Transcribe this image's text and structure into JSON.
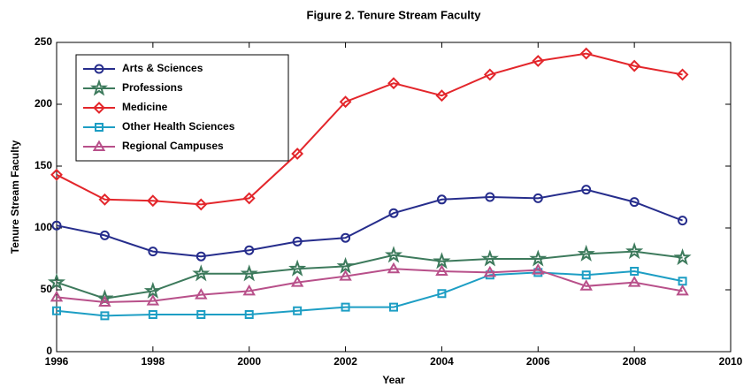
{
  "chart_data": {
    "type": "line",
    "title": "Figure 2. Tenure Stream Faculty",
    "xlabel": "Year",
    "ylabel": "Tenure Stream Faculty",
    "x": [
      1996,
      1997,
      1998,
      1999,
      2000,
      2001,
      2002,
      2003,
      2004,
      2005,
      2006,
      2007,
      2008,
      2009
    ],
    "series": [
      {
        "name": "Arts & Sciences",
        "color": "#262d8c",
        "marker": "circle",
        "values": [
          102,
          94,
          81,
          77,
          82,
          89,
          92,
          112,
          123,
          125,
          124,
          131,
          121,
          106
        ]
      },
      {
        "name": "Professions",
        "color": "#3d7a5c",
        "marker": "star",
        "values": [
          56,
          43,
          49,
          63,
          63,
          67,
          69,
          78,
          73,
          75,
          75,
          79,
          81,
          76
        ]
      },
      {
        "name": "Medicine",
        "color": "#e3262b",
        "marker": "diamond",
        "values": [
          143,
          123,
          122,
          119,
          124,
          160,
          202,
          217,
          207,
          224,
          235,
          241,
          231,
          224
        ]
      },
      {
        "name": "Other Health Sciences",
        "color": "#1d9ec4",
        "marker": "square",
        "values": [
          33,
          29,
          30,
          30,
          30,
          33,
          36,
          36,
          47,
          62,
          64,
          62,
          65,
          57
        ]
      },
      {
        "name": "Regional Campuses",
        "color": "#b8508a",
        "marker": "triangle",
        "values": [
          44,
          40,
          41,
          46,
          49,
          56,
          61,
          67,
          65,
          64,
          66,
          53,
          56,
          49
        ]
      }
    ],
    "xlim": [
      1996,
      2010
    ],
    "xticks": [
      1996,
      1998,
      2000,
      2002,
      2004,
      2006,
      2008,
      2010
    ],
    "ylim": [
      0,
      250
    ],
    "yticks": [
      0,
      50,
      100,
      150,
      200,
      250
    ],
    "legend": "upper left"
  }
}
